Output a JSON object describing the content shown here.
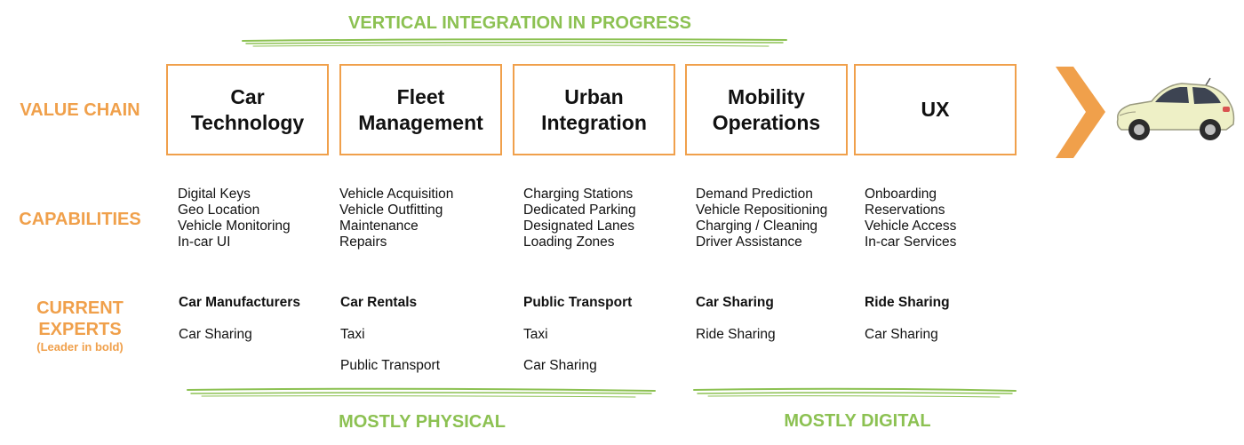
{
  "header": {
    "title": "VERTICAL INTEGRATION IN PROGRESS"
  },
  "rows": {
    "value_chain": "VALUE CHAIN",
    "capabilities": "CAPABILITIES",
    "experts_line1": "CURRENT",
    "experts_line2": "EXPERTS",
    "experts_note": "(Leader in bold)"
  },
  "columns": [
    {
      "title": "Car\nTechnology",
      "capabilities": [
        "Digital Keys",
        "Geo Location",
        "Vehicle Monitoring",
        "In-car UI"
      ],
      "leader": "Car Manufacturers",
      "experts": [
        "Car Sharing"
      ]
    },
    {
      "title": "Fleet\nManagement",
      "capabilities": [
        "Vehicle Acquisition",
        "Vehicle Outfitting",
        "Maintenance",
        "Repairs"
      ],
      "leader": "Car Rentals",
      "experts": [
        "Taxi",
        "Public Transport"
      ]
    },
    {
      "title": "Urban\nIntegration",
      "capabilities": [
        "Charging Stations",
        "Dedicated Parking",
        "Designated Lanes",
        "Loading Zones"
      ],
      "leader": "Public Transport",
      "experts": [
        "Taxi",
        "Car Sharing"
      ]
    },
    {
      "title": "Mobility\nOperations",
      "capabilities": [
        "Demand Prediction",
        "Vehicle Repositioning",
        "Charging / Cleaning",
        "Driver Assistance"
      ],
      "leader": "Car Sharing",
      "experts": [
        "Ride Sharing"
      ]
    },
    {
      "title": "UX",
      "capabilities": [
        "Onboarding",
        "Reservations",
        "Vehicle Access",
        "In-car Services"
      ],
      "leader": "Ride Sharing",
      "experts": [
        "Car Sharing"
      ]
    }
  ],
  "footer": {
    "physical_label": "MOSTLY PHYSICAL",
    "digital_label": "MOSTLY DIGITAL"
  },
  "colors": {
    "orange": "#f0a04b",
    "green": "#8cc152",
    "text": "#111111"
  },
  "icons": {
    "arrow": "chevron-right-icon",
    "car": "car-icon"
  }
}
